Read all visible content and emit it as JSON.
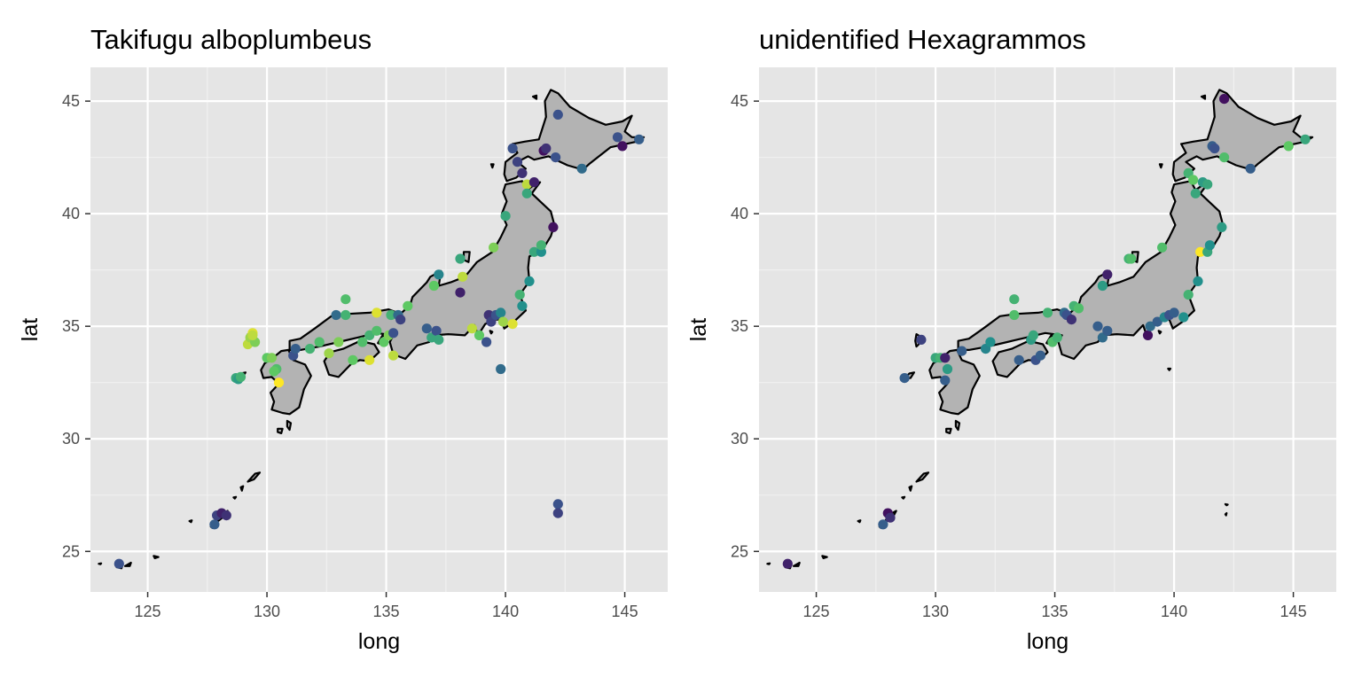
{
  "figure": {
    "panels": [
      {
        "title": "Takifugu alboplumbeus"
      },
      {
        "title": "unidentified Hexagrammos"
      }
    ]
  },
  "chart_data": [
    {
      "type": "scatter",
      "title": "Takifugu alboplumbeus",
      "xlabel": "long",
      "ylabel": "lat",
      "xlim": [
        122.6,
        146.8
      ],
      "ylim": [
        23.2,
        46.5
      ],
      "xticks": [
        125,
        130,
        135,
        140,
        145
      ],
      "yticks": [
        25,
        30,
        35,
        40,
        45
      ],
      "grid": true,
      "legend": "none",
      "colormap": [
        "#440154",
        "#3b528b",
        "#21908c",
        "#5dc863",
        "#fde725"
      ],
      "basemap": "Japan coastline outline, grey fill",
      "points": [
        {
          "x": 123.8,
          "y": 24.45,
          "c": 0.25
        },
        {
          "x": 127.8,
          "y": 26.2,
          "c": 0.3
        },
        {
          "x": 127.9,
          "y": 26.6,
          "c": 0.2
        },
        {
          "x": 128.1,
          "y": 26.7,
          "c": 0.1
        },
        {
          "x": 128.3,
          "y": 26.6,
          "c": 0.15
        },
        {
          "x": 128.7,
          "y": 32.7,
          "c": 0.6
        },
        {
          "x": 128.8,
          "y": 32.65,
          "c": 0.55
        },
        {
          "x": 128.9,
          "y": 32.75,
          "c": 0.65
        },
        {
          "x": 129.2,
          "y": 34.2,
          "c": 0.9
        },
        {
          "x": 129.3,
          "y": 34.5,
          "c": 0.85
        },
        {
          "x": 129.4,
          "y": 34.7,
          "c": 0.95
        },
        {
          "x": 129.5,
          "y": 34.3,
          "c": 0.8
        },
        {
          "x": 129.4,
          "y": 34.6,
          "c": 0.9
        },
        {
          "x": 130.0,
          "y": 33.6,
          "c": 0.75
        },
        {
          "x": 130.2,
          "y": 33.6,
          "c": 0.8
        },
        {
          "x": 130.4,
          "y": 33.1,
          "c": 0.7
        },
        {
          "x": 130.5,
          "y": 32.5,
          "c": 1.0
        },
        {
          "x": 130.3,
          "y": 33.0,
          "c": 0.75
        },
        {
          "x": 131.1,
          "y": 33.7,
          "c": 0.25
        },
        {
          "x": 131.2,
          "y": 34.0,
          "c": 0.3
        },
        {
          "x": 131.8,
          "y": 34.0,
          "c": 0.65
        },
        {
          "x": 132.2,
          "y": 34.3,
          "c": 0.7
        },
        {
          "x": 132.6,
          "y": 33.8,
          "c": 0.85
        },
        {
          "x": 132.9,
          "y": 35.5,
          "c": 0.35
        },
        {
          "x": 133.0,
          "y": 34.3,
          "c": 0.8
        },
        {
          "x": 133.3,
          "y": 36.2,
          "c": 0.7
        },
        {
          "x": 133.3,
          "y": 35.5,
          "c": 0.65
        },
        {
          "x": 133.6,
          "y": 33.5,
          "c": 0.75
        },
        {
          "x": 134.0,
          "y": 34.3,
          "c": 0.7
        },
        {
          "x": 134.3,
          "y": 34.6,
          "c": 0.65
        },
        {
          "x": 134.3,
          "y": 33.5,
          "c": 0.95
        },
        {
          "x": 134.6,
          "y": 35.6,
          "c": 0.95
        },
        {
          "x": 134.6,
          "y": 34.8,
          "c": 0.7
        },
        {
          "x": 134.9,
          "y": 34.3,
          "c": 0.75
        },
        {
          "x": 135.1,
          "y": 34.6,
          "c": 0.8
        },
        {
          "x": 135.2,
          "y": 35.5,
          "c": 0.65
        },
        {
          "x": 135.3,
          "y": 33.7,
          "c": 0.9
        },
        {
          "x": 135.3,
          "y": 34.7,
          "c": 0.25
        },
        {
          "x": 135.5,
          "y": 35.5,
          "c": 0.35
        },
        {
          "x": 135.6,
          "y": 35.3,
          "c": 0.2
        },
        {
          "x": 135.9,
          "y": 35.9,
          "c": 0.75
        },
        {
          "x": 136.7,
          "y": 34.9,
          "c": 0.3
        },
        {
          "x": 136.9,
          "y": 34.5,
          "c": 0.6
        },
        {
          "x": 137.0,
          "y": 36.8,
          "c": 0.75
        },
        {
          "x": 137.1,
          "y": 34.8,
          "c": 0.25
        },
        {
          "x": 137.2,
          "y": 34.4,
          "c": 0.6
        },
        {
          "x": 137.2,
          "y": 37.3,
          "c": 0.45
        },
        {
          "x": 138.1,
          "y": 38.0,
          "c": 0.6
        },
        {
          "x": 138.2,
          "y": 37.2,
          "c": 0.9
        },
        {
          "x": 138.1,
          "y": 36.5,
          "c": 0.1
        },
        {
          "x": 138.6,
          "y": 34.9,
          "c": 0.9
        },
        {
          "x": 138.9,
          "y": 34.6,
          "c": 0.75
        },
        {
          "x": 139.2,
          "y": 34.3,
          "c": 0.25
        },
        {
          "x": 139.3,
          "y": 35.5,
          "c": 0.15
        },
        {
          "x": 139.4,
          "y": 35.2,
          "c": 0.2
        },
        {
          "x": 139.5,
          "y": 38.5,
          "c": 0.8
        },
        {
          "x": 139.6,
          "y": 35.5,
          "c": 0.25
        },
        {
          "x": 139.8,
          "y": 35.6,
          "c": 0.45
        },
        {
          "x": 139.8,
          "y": 33.1,
          "c": 0.35
        },
        {
          "x": 139.9,
          "y": 35.2,
          "c": 0.85
        },
        {
          "x": 140.0,
          "y": 39.9,
          "c": 0.6
        },
        {
          "x": 140.3,
          "y": 35.1,
          "c": 0.95
        },
        {
          "x": 140.6,
          "y": 36.4,
          "c": 0.65
        },
        {
          "x": 140.7,
          "y": 35.9,
          "c": 0.5
        },
        {
          "x": 140.3,
          "y": 42.9,
          "c": 0.25
        },
        {
          "x": 140.5,
          "y": 42.3,
          "c": 0.2
        },
        {
          "x": 140.7,
          "y": 41.8,
          "c": 0.15
        },
        {
          "x": 140.9,
          "y": 41.3,
          "c": 0.9
        },
        {
          "x": 140.9,
          "y": 40.9,
          "c": 0.6
        },
        {
          "x": 141.0,
          "y": 37.0,
          "c": 0.5
        },
        {
          "x": 141.2,
          "y": 41.4,
          "c": 0.1
        },
        {
          "x": 141.2,
          "y": 38.3,
          "c": 0.6
        },
        {
          "x": 141.5,
          "y": 38.3,
          "c": 0.5
        },
        {
          "x": 141.5,
          "y": 38.6,
          "c": 0.65
        },
        {
          "x": 141.6,
          "y": 42.8,
          "c": 0.05
        },
        {
          "x": 141.7,
          "y": 42.9,
          "c": 0.15
        },
        {
          "x": 142.0,
          "y": 39.4,
          "c": 0.05
        },
        {
          "x": 142.1,
          "y": 42.5,
          "c": 0.25
        },
        {
          "x": 142.2,
          "y": 44.4,
          "c": 0.25
        },
        {
          "x": 142.2,
          "y": 27.1,
          "c": 0.25
        },
        {
          "x": 142.2,
          "y": 26.7,
          "c": 0.2
        },
        {
          "x": 143.2,
          "y": 42.0,
          "c": 0.35
        },
        {
          "x": 144.7,
          "y": 43.4,
          "c": 0.25
        },
        {
          "x": 144.9,
          "y": 43.0,
          "c": 0.05
        },
        {
          "x": 145.6,
          "y": 43.3,
          "c": 0.3
        }
      ]
    },
    {
      "type": "scatter",
      "title": "unidentified Hexagrammos",
      "xlabel": "long",
      "ylabel": "lat",
      "xlim": [
        122.6,
        146.8
      ],
      "ylim": [
        23.2,
        46.5
      ],
      "xticks": [
        125,
        130,
        135,
        140,
        145
      ],
      "yticks": [
        25,
        30,
        35,
        40,
        45
      ],
      "grid": true,
      "legend": "none",
      "colormap": [
        "#440154",
        "#3b528b",
        "#21908c",
        "#5dc863",
        "#fde725"
      ],
      "basemap": "Japan coastline outline, grey fill",
      "points": [
        {
          "x": 123.8,
          "y": 24.45,
          "c": 0.1
        },
        {
          "x": 127.8,
          "y": 26.2,
          "c": 0.3
        },
        {
          "x": 128.0,
          "y": 26.7,
          "c": 0.05
        },
        {
          "x": 128.1,
          "y": 26.5,
          "c": 0.15
        },
        {
          "x": 128.7,
          "y": 32.7,
          "c": 0.3
        },
        {
          "x": 129.4,
          "y": 34.4,
          "c": 0.2
        },
        {
          "x": 130.0,
          "y": 33.6,
          "c": 0.6
        },
        {
          "x": 130.2,
          "y": 33.6,
          "c": 0.65
        },
        {
          "x": 130.4,
          "y": 33.6,
          "c": 0.1
        },
        {
          "x": 130.5,
          "y": 33.1,
          "c": 0.55
        },
        {
          "x": 130.4,
          "y": 32.6,
          "c": 0.3
        },
        {
          "x": 131.1,
          "y": 33.9,
          "c": 0.3
        },
        {
          "x": 132.1,
          "y": 34.0,
          "c": 0.45
        },
        {
          "x": 132.3,
          "y": 34.3,
          "c": 0.5
        },
        {
          "x": 133.3,
          "y": 36.2,
          "c": 0.65
        },
        {
          "x": 133.3,
          "y": 35.5,
          "c": 0.7
        },
        {
          "x": 133.5,
          "y": 33.5,
          "c": 0.3
        },
        {
          "x": 134.0,
          "y": 34.4,
          "c": 0.55
        },
        {
          "x": 134.1,
          "y": 34.6,
          "c": 0.6
        },
        {
          "x": 134.2,
          "y": 33.5,
          "c": 0.25
        },
        {
          "x": 134.4,
          "y": 33.7,
          "c": 0.3
        },
        {
          "x": 134.7,
          "y": 35.6,
          "c": 0.65
        },
        {
          "x": 134.9,
          "y": 34.3,
          "c": 0.7
        },
        {
          "x": 135.1,
          "y": 34.5,
          "c": 0.65
        },
        {
          "x": 135.4,
          "y": 35.6,
          "c": 0.35
        },
        {
          "x": 135.5,
          "y": 35.5,
          "c": 0.25
        },
        {
          "x": 135.7,
          "y": 35.3,
          "c": 0.15
        },
        {
          "x": 135.8,
          "y": 35.9,
          "c": 0.65
        },
        {
          "x": 136.0,
          "y": 35.8,
          "c": 0.7
        },
        {
          "x": 136.8,
          "y": 35.0,
          "c": 0.3
        },
        {
          "x": 137.0,
          "y": 34.5,
          "c": 0.35
        },
        {
          "x": 137.0,
          "y": 36.8,
          "c": 0.55
        },
        {
          "x": 137.2,
          "y": 37.3,
          "c": 0.1
        },
        {
          "x": 137.2,
          "y": 34.8,
          "c": 0.3
        },
        {
          "x": 138.1,
          "y": 38.0,
          "c": 0.65
        },
        {
          "x": 138.2,
          "y": 38.0,
          "c": 0.7
        },
        {
          "x": 138.9,
          "y": 34.6,
          "c": 0.05
        },
        {
          "x": 139.0,
          "y": 35.0,
          "c": 0.35
        },
        {
          "x": 139.3,
          "y": 35.2,
          "c": 0.3
        },
        {
          "x": 139.5,
          "y": 38.5,
          "c": 0.7
        },
        {
          "x": 139.6,
          "y": 35.4,
          "c": 0.45
        },
        {
          "x": 139.8,
          "y": 35.5,
          "c": 0.25
        },
        {
          "x": 140.0,
          "y": 35.6,
          "c": 0.3
        },
        {
          "x": 140.4,
          "y": 35.4,
          "c": 0.5
        },
        {
          "x": 140.6,
          "y": 36.4,
          "c": 0.65
        },
        {
          "x": 140.6,
          "y": 41.8,
          "c": 0.65
        },
        {
          "x": 140.8,
          "y": 41.5,
          "c": 0.75
        },
        {
          "x": 140.9,
          "y": 40.9,
          "c": 0.6
        },
        {
          "x": 141.0,
          "y": 37.0,
          "c": 0.5
        },
        {
          "x": 141.1,
          "y": 38.3,
          "c": 1.0
        },
        {
          "x": 141.2,
          "y": 41.4,
          "c": 0.55
        },
        {
          "x": 141.4,
          "y": 41.3,
          "c": 0.6
        },
        {
          "x": 141.4,
          "y": 38.3,
          "c": 0.6
        },
        {
          "x": 141.5,
          "y": 38.6,
          "c": 0.5
        },
        {
          "x": 141.6,
          "y": 43.0,
          "c": 0.3
        },
        {
          "x": 141.7,
          "y": 42.9,
          "c": 0.25
        },
        {
          "x": 142.0,
          "y": 39.4,
          "c": 0.55
        },
        {
          "x": 142.1,
          "y": 42.5,
          "c": 0.7
        },
        {
          "x": 142.1,
          "y": 45.1,
          "c": 0.05
        },
        {
          "x": 143.2,
          "y": 42.0,
          "c": 0.3
        },
        {
          "x": 144.8,
          "y": 43.0,
          "c": 0.75
        },
        {
          "x": 145.5,
          "y": 43.3,
          "c": 0.6
        }
      ]
    }
  ]
}
